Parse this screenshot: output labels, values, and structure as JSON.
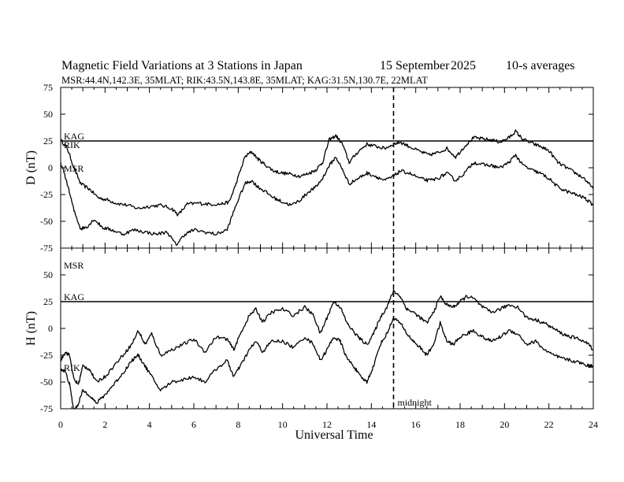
{
  "header": {
    "title": "Magnetic Field Variations at 3 Stations in Japan",
    "date": "15 September",
    "year": "2025",
    "averaging": "10-s averages",
    "stations_line": "MSR:44.4N,142.3E, 35MLAT;  RIK:43.5N,143.8E, 35MLAT;  KAG:31.5N,130.7E, 22MLAT"
  },
  "chart_data": [
    {
      "type": "line",
      "panel": "top",
      "ylabel": "D (nT)",
      "xlabel": "",
      "xlim": [
        0,
        24
      ],
      "ylim": [
        -75,
        75
      ],
      "yticks": [
        75,
        50,
        25,
        0,
        -25,
        -50,
        -75
      ],
      "baseline_value": 25,
      "series": [
        {
          "name": "KAG/RIK",
          "x": [
            0,
            0.3,
            0.6,
            0.9,
            1.3,
            1.7,
            2.1,
            2.5,
            3,
            3.5,
            4,
            4.5,
            5,
            5.3,
            5.7,
            6.2,
            6.7,
            7.2,
            7.6,
            7.9,
            8.3,
            8.6,
            8.9,
            9.2,
            9.6,
            10,
            10.4,
            10.8,
            11.2,
            11.5,
            11.8,
            12.1,
            12.4,
            12.7,
            13,
            13.4,
            13.8,
            14.2,
            14.6,
            15,
            15.3,
            15.7,
            16.2,
            16.6,
            17,
            17.4,
            17.8,
            18.2,
            18.6,
            19,
            19.4,
            19.8,
            20.2,
            20.5,
            20.8,
            21.2,
            21.6,
            22,
            22.4,
            22.8,
            23.2,
            23.6,
            24
          ],
          "values": [
            26,
            18,
            0,
            -15,
            -20,
            -28,
            -30,
            -33,
            -35,
            -38,
            -36,
            -35,
            -38,
            -44,
            -34,
            -33,
            -34,
            -34,
            -32,
            -15,
            10,
            15,
            8,
            3,
            -3,
            -5,
            -6,
            -8,
            -5,
            -2,
            5,
            26,
            30,
            22,
            5,
            15,
            22,
            20,
            18,
            22,
            24,
            20,
            15,
            12,
            14,
            18,
            10,
            20,
            28,
            27,
            26,
            24,
            28,
            34,
            27,
            23,
            20,
            16,
            5,
            0,
            -5,
            -10,
            -20
          ]
        },
        {
          "name": "MSR",
          "x": [
            0,
            0.3,
            0.6,
            0.9,
            1.2,
            1.5,
            1.9,
            2.3,
            2.8,
            3.3,
            3.8,
            4.3,
            4.8,
            5.2,
            5.6,
            6,
            6.5,
            7,
            7.5,
            7.9,
            8.3,
            8.6,
            8.9,
            9.2,
            9.6,
            10,
            10.4,
            10.8,
            11.2,
            11.5,
            11.8,
            12.1,
            12.4,
            12.7,
            13,
            13.4,
            13.8,
            14.2,
            14.6,
            15,
            15.3,
            15.7,
            16.2,
            16.6,
            17,
            17.4,
            17.8,
            18.2,
            18.6,
            19,
            19.4,
            19.8,
            20.2,
            20.5,
            20.8,
            21.2,
            21.6,
            22,
            22.4,
            22.8,
            23.2,
            23.6,
            24
          ],
          "values": [
            5,
            -15,
            -40,
            -57,
            -55,
            -48,
            -56,
            -58,
            -62,
            -58,
            -60,
            -62,
            -60,
            -72,
            -62,
            -58,
            -60,
            -62,
            -58,
            -35,
            -15,
            -12,
            -18,
            -22,
            -28,
            -32,
            -35,
            -30,
            -22,
            -18,
            -10,
            2,
            10,
            -2,
            -15,
            -10,
            -5,
            -8,
            -12,
            -8,
            -3,
            -5,
            -10,
            -12,
            -10,
            -5,
            -12,
            -5,
            5,
            3,
            2,
            0,
            5,
            12,
            3,
            -2,
            -5,
            -10,
            -18,
            -22,
            -25,
            -28,
            -35
          ]
        }
      ]
    },
    {
      "type": "line",
      "panel": "bottom",
      "ylabel": "H (nT)",
      "xlabel": "Universal Time",
      "xlim": [
        0,
        24
      ],
      "ylim": [
        -75,
        75
      ],
      "yticks": [
        75,
        50,
        25,
        0,
        -25,
        -50,
        -75
      ],
      "xticks": [
        0,
        2,
        4,
        6,
        8,
        10,
        12,
        14,
        16,
        18,
        20,
        22,
        24
      ],
      "baseline_value": 25,
      "series": [
        {
          "name": "MSR",
          "x": [
            0,
            0.2,
            0.4,
            0.6,
            0.8,
            1,
            1.3,
            1.6,
            2,
            2.4,
            2.8,
            3.2,
            3.5,
            3.8,
            4.1,
            4.5,
            5,
            5.5,
            6,
            6.5,
            7,
            7.5,
            7.8,
            8.1,
            8.5,
            8.8,
            9.1,
            9.5,
            10,
            10.5,
            11,
            11.4,
            11.7,
            12,
            12.3,
            12.6,
            12.9,
            13.2,
            13.5,
            13.8,
            14.1,
            14.4,
            14.7,
            15,
            15.3,
            15.6,
            15.9,
            16.2,
            16.5,
            16.8,
            17.1,
            17.4,
            17.7,
            18,
            18.3,
            18.6,
            19,
            19.4,
            19.8,
            20.2,
            20.6,
            21,
            21.4,
            21.8,
            22.2,
            22.6,
            23,
            23.4,
            23.8,
            24
          ],
          "values": [
            -30,
            -22,
            -25,
            -48,
            -52,
            -35,
            -38,
            -50,
            -45,
            -35,
            -25,
            -15,
            -2,
            -15,
            -5,
            -25,
            -20,
            -15,
            -10,
            -22,
            -8,
            -10,
            -20,
            -5,
            12,
            18,
            6,
            15,
            18,
            12,
            20,
            12,
            -5,
            10,
            25,
            20,
            5,
            -3,
            -10,
            -15,
            -5,
            10,
            20,
            35,
            30,
            18,
            15,
            10,
            5,
            15,
            30,
            22,
            20,
            25,
            30,
            28,
            20,
            15,
            18,
            22,
            20,
            10,
            8,
            5,
            0,
            -5,
            -8,
            -10,
            -15,
            -20
          ]
        },
        {
          "name": "KAG/RIK",
          "x": [
            0,
            0.2,
            0.4,
            0.6,
            0.8,
            1,
            1.3,
            1.6,
            2,
            2.4,
            2.8,
            3.2,
            3.5,
            3.8,
            4.1,
            4.5,
            5,
            5.5,
            6,
            6.5,
            7,
            7.5,
            7.8,
            8.1,
            8.5,
            8.8,
            9.1,
            9.5,
            10,
            10.5,
            11,
            11.4,
            11.7,
            12,
            12.3,
            12.6,
            12.9,
            13.2,
            13.5,
            13.8,
            14.1,
            14.4,
            14.7,
            15,
            15.3,
            15.6,
            15.9,
            16.2,
            16.5,
            16.8,
            17.1,
            17.4,
            17.7,
            18,
            18.3,
            18.6,
            19,
            19.4,
            19.8,
            20.2,
            20.6,
            21,
            21.4,
            21.8,
            22.2,
            22.6,
            23,
            23.4,
            23.8,
            24
          ],
          "values": [
            -38,
            -40,
            -52,
            -78,
            -70,
            -58,
            -62,
            -70,
            -62,
            -52,
            -42,
            -30,
            -25,
            -35,
            -45,
            -58,
            -50,
            -48,
            -45,
            -50,
            -38,
            -30,
            -45,
            -35,
            -20,
            -12,
            -22,
            -12,
            -12,
            -18,
            -8,
            -15,
            -30,
            -20,
            -8,
            -12,
            -28,
            -35,
            -45,
            -50,
            -35,
            -15,
            -5,
            10,
            5,
            -5,
            -12,
            -18,
            -25,
            -15,
            5,
            -12,
            -15,
            -8,
            -5,
            -2,
            -8,
            -12,
            -8,
            -2,
            -5,
            -15,
            -12,
            -20,
            -25,
            -28,
            -30,
            -32,
            -35,
            -35
          ]
        }
      ]
    }
  ],
  "labels": {
    "top": [
      "KAG",
      "RIK",
      "MSR"
    ],
    "bottom": [
      "MSR",
      "KAG",
      "RIK"
    ],
    "midnight": "midnight",
    "midnight_ut": 15
  }
}
